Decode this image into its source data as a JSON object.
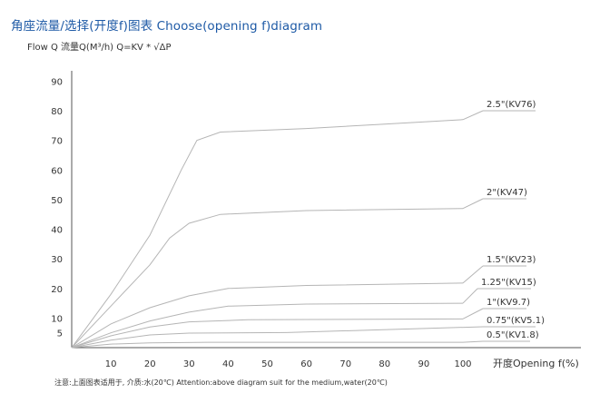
{
  "title": "角座流量/选择(开度f)图表 Choose(opening f)diagram",
  "footnote": "注意:上面图表适用于, 介质:水(20℃)   Attention:above diagram suit for the medium,water(20℃)",
  "colors": {
    "title": "#1e5aa6",
    "axis": "#555555",
    "curve": "#b5b5b5",
    "text": "#333333"
  },
  "chart_data": {
    "type": "line",
    "title": "",
    "ylabel": "Flow Q 流量Q(M³/h) Q=KV * √ΔP",
    "xlabel": "开度Opening f(%)",
    "xlim": [
      0,
      100
    ],
    "ylim": [
      0,
      95
    ],
    "x_ticks": [
      10,
      20,
      30,
      40,
      50,
      60,
      70,
      80,
      90,
      100
    ],
    "y_ticks": [
      5,
      10,
      20,
      30,
      40,
      50,
      60,
      70,
      80,
      90
    ],
    "grid": false,
    "series": [
      {
        "name": "2.5\"(KV76)",
        "points": [
          [
            0,
            0
          ],
          [
            10,
            18
          ],
          [
            20,
            38
          ],
          [
            28,
            60
          ],
          [
            32,
            70
          ],
          [
            38,
            72.8
          ],
          [
            60,
            74
          ],
          [
            80,
            75.5
          ],
          [
            100,
            77
          ]
        ]
      },
      {
        "name": "2\"(KV47)",
        "points": [
          [
            0,
            0
          ],
          [
            10,
            14
          ],
          [
            20,
            28
          ],
          [
            25,
            37
          ],
          [
            30,
            42
          ],
          [
            38,
            45
          ],
          [
            60,
            46.3
          ],
          [
            100,
            47
          ]
        ]
      },
      {
        "name": "1.5\"(KV23)",
        "points": [
          [
            0,
            0
          ],
          [
            10,
            8
          ],
          [
            20,
            13.5
          ],
          [
            30,
            17.5
          ],
          [
            40,
            20
          ],
          [
            60,
            21
          ],
          [
            100,
            21.8
          ]
        ]
      },
      {
        "name": "1.25\"(KV15)",
        "points": [
          [
            0,
            0
          ],
          [
            10,
            5
          ],
          [
            20,
            9
          ],
          [
            30,
            12
          ],
          [
            40,
            14
          ],
          [
            60,
            14.7
          ],
          [
            100,
            15
          ]
        ]
      },
      {
        "name": "1\"(KV9.7)",
        "points": [
          [
            0,
            0
          ],
          [
            10,
            4
          ],
          [
            20,
            7
          ],
          [
            30,
            8.7
          ],
          [
            45,
            9.4
          ],
          [
            100,
            9.7
          ]
        ]
      },
      {
        "name": "0.75\"(KV5.1)",
        "points": [
          [
            0,
            0
          ],
          [
            10,
            2.5
          ],
          [
            20,
            4.3
          ],
          [
            30,
            4.9
          ],
          [
            55,
            5.1
          ]
        ]
      },
      {
        "name": "0.5\"(KV1.8)",
        "points": [
          [
            0,
            0
          ],
          [
            10,
            1.2
          ],
          [
            20,
            1.6
          ],
          [
            35,
            1.8
          ],
          [
            100,
            1.8
          ]
        ]
      }
    ]
  }
}
